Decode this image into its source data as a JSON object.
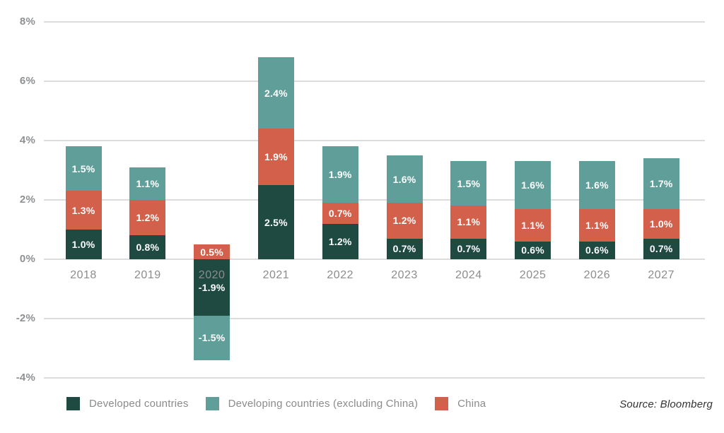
{
  "chart_data": {
    "type": "bar",
    "variant": "stacked",
    "title": "",
    "categories": [
      "2018",
      "2019",
      "2020",
      "2021",
      "2022",
      "2023",
      "2024",
      "2025",
      "2026",
      "2027"
    ],
    "series": [
      {
        "name": "Developed countries",
        "color": "#1e4a42",
        "values": [
          1.0,
          0.8,
          -1.9,
          2.5,
          1.2,
          0.7,
          0.7,
          0.6,
          0.6,
          0.7
        ],
        "labels": [
          "1.0%",
          "0.8%",
          "-1.9%",
          "2.5%",
          "1.2%",
          "0.7%",
          "0.7%",
          "0.6%",
          "0.6%",
          "0.7%"
        ]
      },
      {
        "name": "China",
        "color": "#d2604b",
        "values": [
          1.3,
          1.2,
          0.5,
          1.9,
          0.7,
          1.2,
          1.1,
          1.1,
          1.1,
          1.0
        ],
        "labels": [
          "1.3%",
          "1.2%",
          "0.5%",
          "1.9%",
          "0.7%",
          "1.2%",
          "1.1%",
          "1.1%",
          "1.1%",
          "1.0%"
        ]
      },
      {
        "name": "Developing countries (excluding China)",
        "color": "#5f9e99",
        "values": [
          1.5,
          1.1,
          -1.5,
          2.4,
          1.9,
          1.6,
          1.5,
          1.6,
          1.6,
          1.7
        ],
        "labels": [
          "1.5%",
          "1.1%",
          "-1.5%",
          "2.4%",
          "1.9%",
          "1.6%",
          "1.5%",
          "1.6%",
          "1.6%",
          "1.7%"
        ]
      }
    ],
    "y_ticks": [
      {
        "label": "8%",
        "value": 8
      },
      {
        "label": "6%",
        "value": 6
      },
      {
        "label": "4%",
        "value": 4
      },
      {
        "label": "2%",
        "value": 2
      },
      {
        "label": "0%",
        "value": 0
      },
      {
        "label": "-2%",
        "value": -2
      },
      {
        "label": "-4%",
        "value": -4
      }
    ],
    "ylim": [
      -4,
      8
    ],
    "grid": true,
    "legend_position": "bottom",
    "legend": [
      {
        "label": "Developed countries",
        "color": "#1e4a42"
      },
      {
        "label": "Developing countries (excluding China)",
        "color": "#5f9e99"
      },
      {
        "label": "China",
        "color": "#d2604b"
      }
    ]
  },
  "source": {
    "text": "Source: Bloomberg"
  }
}
